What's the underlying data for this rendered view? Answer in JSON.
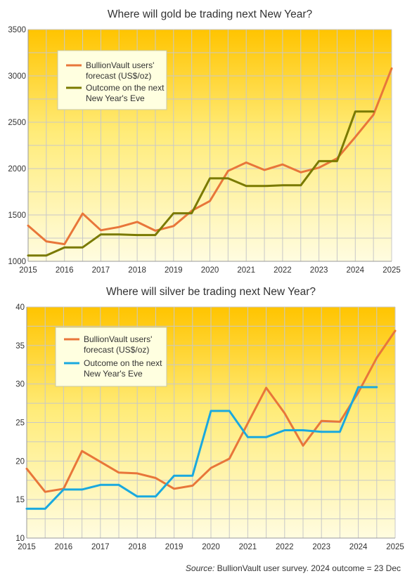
{
  "source": {
    "label": "Source:",
    "text": "BullionVault user survey. 2024 outcome = 23 Dec"
  },
  "chart_data": [
    {
      "type": "line",
      "title": "Where will gold be trading next New Year?",
      "xlabel": "",
      "ylabel": "",
      "xlim": [
        2015,
        2025
      ],
      "ylim": [
        1000,
        3500
      ],
      "xticks": [
        2015,
        2016,
        2017,
        2018,
        2019,
        2020,
        2021,
        2022,
        2023,
        2024,
        2025
      ],
      "yticks": [
        1000,
        1500,
        2000,
        2500,
        3000,
        3500
      ],
      "grid": true,
      "legend_position": "top-left",
      "series": [
        {
          "name": "BullionVault users' forecast (US$/oz)",
          "color": "#e8763a",
          "points": [
            [
              2015,
              1385
            ],
            [
              2015.5,
              1215
            ],
            [
              2016,
              1185
            ],
            [
              2016.5,
              1515
            ],
            [
              2017,
              1335
            ],
            [
              2017.5,
              1370
            ],
            [
              2018,
              1425
            ],
            [
              2018.5,
              1330
            ],
            [
              2019,
              1380
            ],
            [
              2019.5,
              1545
            ],
            [
              2020,
              1650
            ],
            [
              2020.5,
              1975
            ],
            [
              2021,
              2065
            ],
            [
              2021.5,
              1985
            ],
            [
              2022,
              2045
            ],
            [
              2022.5,
              1960
            ],
            [
              2023,
              2010
            ],
            [
              2023.5,
              2110
            ],
            [
              2024,
              2340
            ],
            [
              2024.5,
              2580
            ],
            [
              2025,
              3080
            ]
          ]
        },
        {
          "name": "Outcome on the next New Year's Eve",
          "color": "#7a7a00",
          "points": [
            [
              2015,
              1063
            ],
            [
              2015.5,
              1063
            ],
            [
              2016,
              1150
            ],
            [
              2016.5,
              1150
            ],
            [
              2017,
              1290
            ],
            [
              2017.5,
              1290
            ],
            [
              2018,
              1283
            ],
            [
              2018.5,
              1283
            ],
            [
              2019,
              1518
            ],
            [
              2019.5,
              1518
            ],
            [
              2020,
              1895
            ],
            [
              2020.5,
              1895
            ],
            [
              2021,
              1812
            ],
            [
              2021.5,
              1812
            ],
            [
              2022,
              1820
            ],
            [
              2022.5,
              1820
            ],
            [
              2023,
              2080
            ],
            [
              2023.5,
              2080
            ],
            [
              2024,
              2615
            ],
            [
              2024.5,
              2615
            ]
          ]
        }
      ]
    },
    {
      "type": "line",
      "title": "Where will silver be trading next New Year?",
      "xlabel": "",
      "ylabel": "",
      "xlim": [
        2015,
        2025
      ],
      "ylim": [
        10,
        40
      ],
      "xticks": [
        2015,
        2016,
        2017,
        2018,
        2019,
        2020,
        2021,
        2022,
        2023,
        2024,
        2025
      ],
      "yticks": [
        10,
        15,
        20,
        25,
        30,
        35,
        40
      ],
      "grid": true,
      "legend_position": "top-left",
      "series": [
        {
          "name": "BullionVault users' forecast (US$/oz)",
          "color": "#e8763a",
          "points": [
            [
              2015,
              19.0
            ],
            [
              2015.5,
              16.0
            ],
            [
              2016,
              16.4
            ],
            [
              2016.5,
              21.3
            ],
            [
              2017,
              19.9
            ],
            [
              2017.5,
              18.5
            ],
            [
              2018,
              18.4
            ],
            [
              2018.5,
              17.8
            ],
            [
              2019,
              16.4
            ],
            [
              2019.5,
              16.8
            ],
            [
              2020,
              19.1
            ],
            [
              2020.5,
              20.3
            ],
            [
              2021,
              24.9
            ],
            [
              2021.5,
              29.5
            ],
            [
              2022,
              26.2
            ],
            [
              2022.5,
              22.0
            ],
            [
              2023,
              25.2
            ],
            [
              2023.5,
              25.1
            ],
            [
              2024,
              28.9
            ],
            [
              2024.5,
              33.4
            ],
            [
              2025,
              36.9
            ]
          ]
        },
        {
          "name": "Outcome on the next New Year's Eve",
          "color": "#19a9df",
          "points": [
            [
              2015,
              13.8
            ],
            [
              2015.5,
              13.8
            ],
            [
              2016,
              16.3
            ],
            [
              2016.5,
              16.3
            ],
            [
              2017,
              16.9
            ],
            [
              2017.5,
              16.9
            ],
            [
              2018,
              15.4
            ],
            [
              2018.5,
              15.4
            ],
            [
              2019,
              18.1
            ],
            [
              2019.5,
              18.1
            ],
            [
              2020,
              26.5
            ],
            [
              2020.5,
              26.5
            ],
            [
              2021,
              23.1
            ],
            [
              2021.5,
              23.1
            ],
            [
              2022,
              24.0
            ],
            [
              2022.5,
              24.0
            ],
            [
              2023,
              23.8
            ],
            [
              2023.5,
              23.8
            ],
            [
              2024,
              29.6
            ],
            [
              2024.5,
              29.6
            ]
          ]
        }
      ]
    }
  ]
}
